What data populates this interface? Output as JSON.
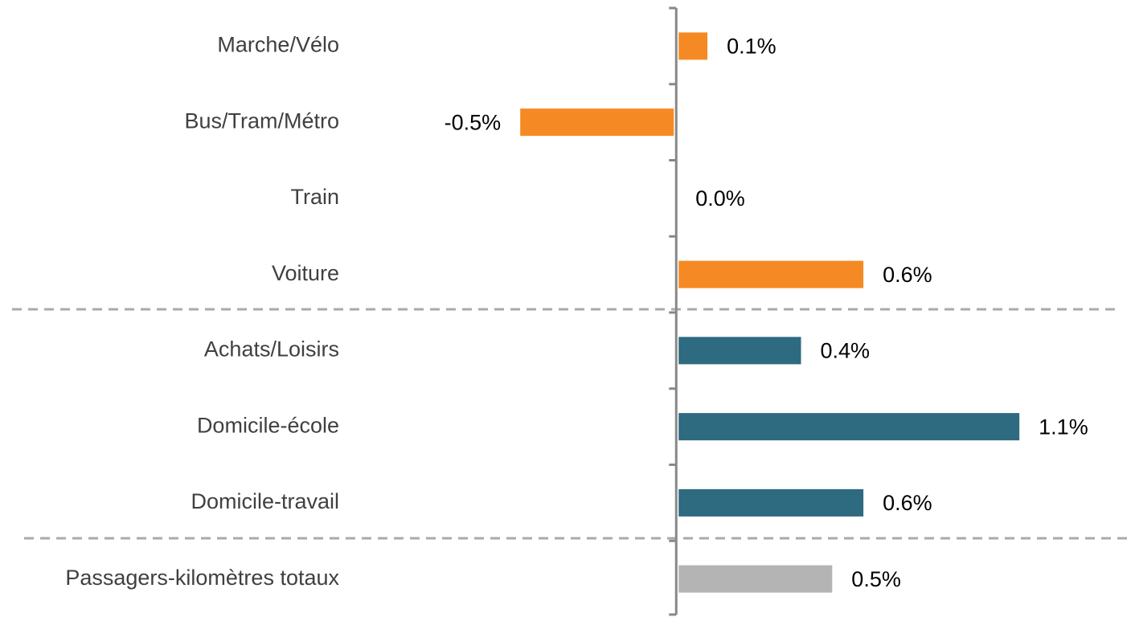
{
  "chart_data": {
    "type": "bar",
    "orientation": "horizontal",
    "categories": [
      "Marche/Vélo",
      "Bus/Tram/Métro",
      "Train",
      "Voiture",
      "Achats/Loisirs",
      "Domicile-école",
      "Domicile-travail",
      "Passagers-kilomètres totaux"
    ],
    "values": [
      0.1,
      -0.5,
      0.0,
      0.6,
      0.4,
      1.1,
      0.6,
      0.5
    ],
    "value_labels": [
      "0.1%",
      "-0.5%",
      "0.0%",
      "0.6%",
      "0.4%",
      "1.1%",
      "0.6%",
      "0.5%"
    ],
    "colors": [
      "#f58a24",
      "#f58a24",
      "#f58a24",
      "#f58a24",
      "#2e6a80",
      "#2e6a80",
      "#2e6a80",
      "#b4b4b4"
    ],
    "xlim": [
      -0.65,
      1.45
    ]
  }
}
